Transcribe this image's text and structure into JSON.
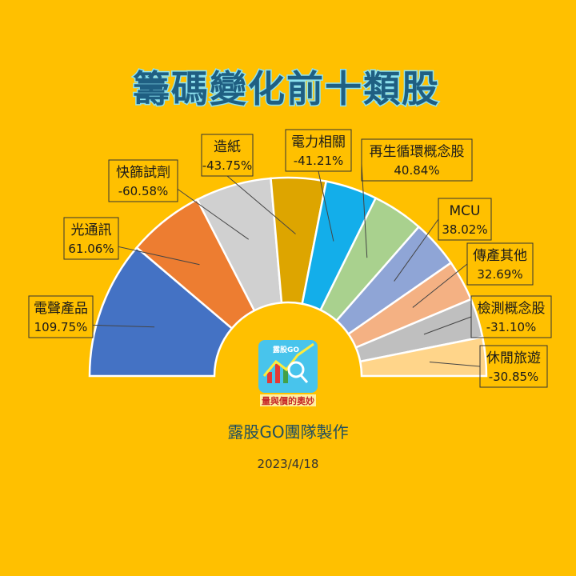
{
  "chart_data": {
    "type": "pie",
    "variant": "half-donut",
    "title": "籌碼變化前十類股",
    "categories": [
      "電聲產品",
      "光通訊",
      "快篩試劑",
      "造紙",
      "電力相關",
      "再生循環概念股",
      "MCU",
      "傳產其他",
      "檢測概念股",
      "休閒旅遊"
    ],
    "values": [
      109.75,
      61.06,
      -60.58,
      -43.75,
      -41.21,
      40.84,
      38.02,
      32.69,
      -31.1,
      -30.85
    ],
    "value_labels": [
      "109.75%",
      "61.06%",
      "-60.58%",
      "-43.75%",
      "-41.21%",
      "40.84%",
      "38.02%",
      "32.69%",
      "-31.10%",
      "-30.85%"
    ],
    "colors": [
      "#4472C4",
      "#ED7D31",
      "#D0D0D0",
      "#DDA500",
      "#13AEEA",
      "#A9D18E",
      "#8FA5D6",
      "#F4B183",
      "#BFBFBF",
      "#FFD58A"
    ]
  },
  "footer": {
    "credit": "露股GO團隊製作",
    "date": "2023/4/18"
  },
  "logo": {
    "brand": "露股GO",
    "slogan": "量與價的奧妙"
  }
}
